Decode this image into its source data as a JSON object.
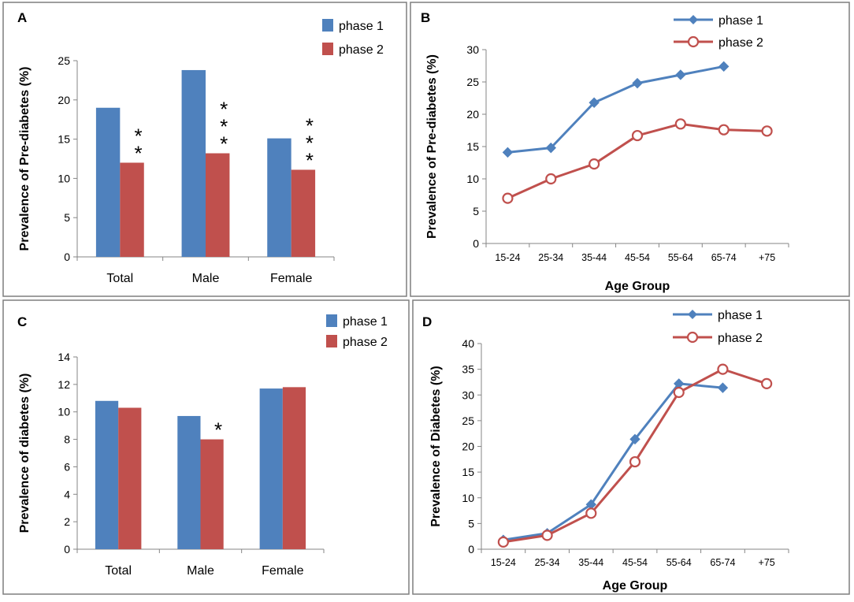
{
  "colors": {
    "phase1": "#4F81BD",
    "phase2": "#C0504D",
    "frame": "#7f7f7f",
    "axis": "#868686",
    "text": "#000000"
  },
  "chart_data": [
    {
      "panel": "A",
      "type": "bar",
      "title": "",
      "xlabel": "",
      "ylabel": "Prevalence of Pre-diabetes (%)",
      "ylim": [
        0,
        25
      ],
      "yticks": [
        0,
        5,
        10,
        15,
        20,
        25
      ],
      "categories": [
        "Total",
        "Male",
        "Female"
      ],
      "series": [
        {
          "name": "phase 1",
          "values": [
            19.0,
            23.8,
            15.1
          ]
        },
        {
          "name": "phase 2",
          "values": [
            12.0,
            13.2,
            11.1
          ]
        }
      ],
      "annotations": [
        {
          "category": "Total",
          "text": "*",
          "count": 2
        },
        {
          "category": "Male",
          "text": "*",
          "count": 3
        },
        {
          "category": "Female",
          "text": "*",
          "count": 3
        }
      ],
      "legend": "top-right"
    },
    {
      "panel": "B",
      "type": "line",
      "title": "",
      "xlabel": "Age Group",
      "ylabel": "Prevalence of Pre-diabetes (%)",
      "ylim": [
        0,
        30
      ],
      "yticks": [
        0,
        5,
        10,
        15,
        20,
        25,
        30
      ],
      "categories": [
        "15-24",
        "25-34",
        "35-44",
        "45-54",
        "55-64",
        "65-74",
        "+75"
      ],
      "series": [
        {
          "name": "phase 1",
          "marker": "diamond",
          "values": [
            14.1,
            14.8,
            21.8,
            24.8,
            26.1,
            27.4,
            null
          ]
        },
        {
          "name": "phase 2",
          "marker": "circle",
          "values": [
            7.0,
            10.0,
            12.3,
            16.7,
            18.5,
            17.6,
            17.4
          ]
        }
      ],
      "legend": "top-right"
    },
    {
      "panel": "C",
      "type": "bar",
      "title": "",
      "xlabel": "",
      "ylabel": "Prevalence of diabetes (%)",
      "ylim": [
        0,
        14
      ],
      "yticks": [
        0,
        2,
        4,
        6,
        8,
        10,
        12,
        14
      ],
      "categories": [
        "Total",
        "Male",
        "Female"
      ],
      "series": [
        {
          "name": "phase 1",
          "values": [
            10.8,
            9.7,
            11.7
          ]
        },
        {
          "name": "phase 2",
          "values": [
            10.3,
            8.0,
            11.8
          ]
        }
      ],
      "annotations": [
        {
          "category": "Male",
          "text": "*",
          "count": 1
        }
      ],
      "legend": "top-right"
    },
    {
      "panel": "D",
      "type": "line",
      "title": "",
      "xlabel": "Age Group",
      "ylabel": "Prevalence of Diabetes (%)",
      "ylim": [
        0,
        40
      ],
      "yticks": [
        0,
        5,
        10,
        15,
        20,
        25,
        30,
        35,
        40
      ],
      "categories": [
        "15-24",
        "25-34",
        "35-44",
        "45-54",
        "55-64",
        "65-74",
        "+75"
      ],
      "series": [
        {
          "name": "phase 1",
          "marker": "diamond",
          "values": [
            1.8,
            3.1,
            8.7,
            21.4,
            32.2,
            31.4,
            null
          ]
        },
        {
          "name": "phase 2",
          "marker": "circle",
          "values": [
            1.4,
            2.7,
            7.0,
            17.0,
            30.5,
            35.0,
            32.2
          ]
        }
      ],
      "legend": "top-right"
    }
  ]
}
